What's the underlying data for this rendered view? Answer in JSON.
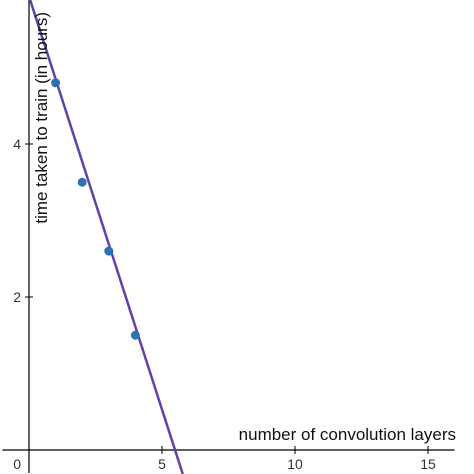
{
  "chart_data": {
    "type": "scatter",
    "title": "",
    "xlabel": "number of convolution layers",
    "ylabel": "time taken to train (in hours)",
    "xlim": [
      -1,
      16
    ],
    "ylim": [
      -0.3,
      6
    ],
    "x_ticks": [
      5,
      10,
      15
    ],
    "y_ticks": [
      2,
      4
    ],
    "origin_label": "0",
    "grid": false,
    "points": [
      {
        "x": 1,
        "y": 4.8
      },
      {
        "x": 2,
        "y": 3.5
      },
      {
        "x": 3,
        "y": 2.6
      },
      {
        "x": 4,
        "y": 1.5
      }
    ],
    "trend_line": {
      "slope": -1.08,
      "intercept": 5.93
    }
  },
  "colors": {
    "point": "#2d70b3",
    "line": "#6042a6",
    "axis": "#000000"
  }
}
